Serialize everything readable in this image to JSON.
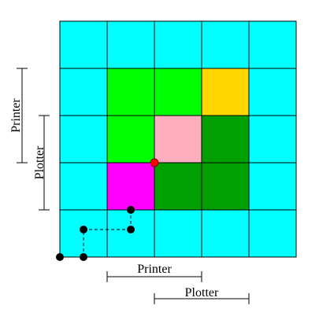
{
  "labels": {
    "bottom_first": "Printer",
    "bottom_second": "Plotter",
    "left_first": "Printer",
    "left_second": "Plotter"
  }
}
